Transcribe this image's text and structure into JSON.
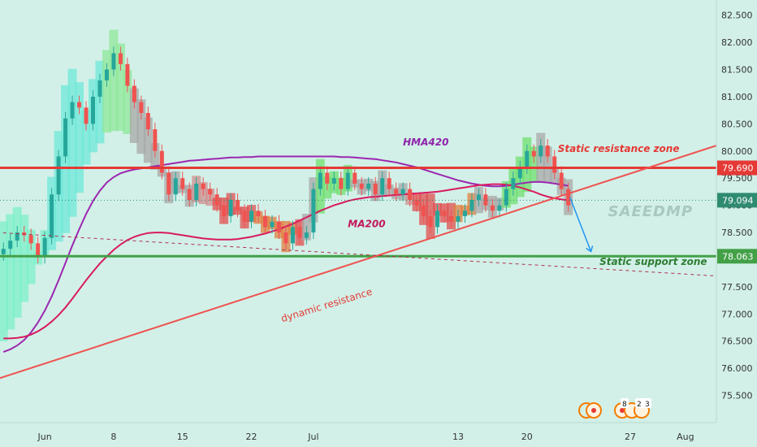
{
  "chart_data": {
    "type": "candlestick",
    "y_ticks": [
      82.5,
      82.0,
      81.5,
      81.0,
      80.5,
      80.0,
      79.5,
      79.0,
      78.5,
      78.0,
      77.5,
      77.0,
      76.5,
      76.0,
      75.5
    ],
    "y_tick_labels": [
      "82.500",
      "82.000",
      "81.500",
      "81.000",
      "80.500",
      "80.000",
      "79.500",
      "79.000",
      "78.500",
      "78.000",
      "77.500",
      "77.000",
      "76.500",
      "76.000",
      "75.500"
    ],
    "ylim": [
      75.0,
      82.78
    ],
    "x_ticks": [
      {
        "label": "Jun",
        "index": 6
      },
      {
        "label": "8",
        "index": 16
      },
      {
        "label": "15",
        "index": 26
      },
      {
        "label": "22",
        "index": 36
      },
      {
        "label": "Jul",
        "index": 45
      },
      {
        "label": "13",
        "index": 66
      },
      {
        "label": "20",
        "index": 76
      },
      {
        "label": "27",
        "index": 91
      },
      {
        "label": "Aug",
        "index": 99
      }
    ],
    "price_labels": [
      {
        "value": 79.69,
        "text": "79.690",
        "color": "#e53935"
      },
      {
        "value": 79.094,
        "text": "79.094",
        "color": "#2e8b70"
      },
      {
        "value": 78.063,
        "text": "78.063",
        "color": "#43a047"
      }
    ],
    "horizontal_lines": [
      {
        "value": 79.69,
        "color": "#e53935"
      },
      {
        "value": 78.063,
        "color": "#43a047"
      }
    ],
    "annotations": {
      "resistance": "Static resistance zone",
      "support": "Static support zone",
      "dynamic": "dynamic resistance",
      "hma": "HMA420",
      "ma": "MA200",
      "watermark": "SAEEDMP"
    },
    "series_close": [
      78.2,
      78.35,
      78.5,
      78.45,
      78.3,
      78.05,
      78.4,
      79.2,
      79.9,
      80.6,
      80.9,
      80.8,
      80.5,
      81.0,
      81.3,
      81.5,
      81.8,
      81.6,
      81.2,
      80.9,
      80.7,
      80.4,
      80.0,
      79.6,
      79.2,
      79.5,
      79.3,
      79.1,
      79.4,
      79.3,
      79.2,
      79.0,
      78.8,
      79.1,
      78.9,
      78.7,
      78.9,
      78.8,
      78.6,
      78.7,
      78.5,
      78.3,
      78.6,
      78.4,
      78.5,
      79.3,
      79.6,
      79.4,
      79.5,
      79.3,
      79.6,
      79.4,
      79.3,
      79.4,
      79.2,
      79.5,
      79.3,
      79.2,
      79.3,
      79.1,
      79.0,
      78.8,
      78.6,
      78.9,
      78.8,
      78.7,
      78.8,
      78.9,
      79.1,
      79.2,
      79.0,
      78.9,
      79.0,
      79.3,
      79.5,
      79.7,
      80.0,
      79.9,
      80.1,
      79.9,
      79.6,
      79.3,
      79.0
    ],
    "series_open": [
      78.1,
      78.2,
      78.35,
      78.5,
      78.45,
      78.3,
      78.05,
      78.4,
      79.2,
      79.9,
      80.6,
      80.9,
      80.8,
      80.5,
      81.0,
      81.3,
      81.5,
      81.8,
      81.6,
      81.2,
      80.9,
      80.7,
      80.4,
      80.0,
      79.6,
      79.2,
      79.5,
      79.3,
      79.1,
      79.4,
      79.3,
      79.2,
      79.0,
      78.8,
      79.1,
      78.9,
      78.7,
      78.9,
      78.8,
      78.6,
      78.7,
      78.5,
      78.3,
      78.6,
      78.4,
      78.5,
      79.3,
      79.6,
      79.4,
      79.5,
      79.3,
      79.6,
      79.4,
      79.3,
      79.4,
      79.2,
      79.5,
      79.3,
      79.2,
      79.3,
      79.1,
      79.0,
      78.8,
      78.6,
      78.9,
      78.8,
      78.7,
      78.8,
      78.9,
      79.1,
      79.2,
      79.0,
      78.9,
      79.0,
      79.3,
      79.5,
      79.7,
      80.0,
      79.9,
      80.1,
      79.9,
      79.6,
      79.3
    ],
    "ma200": [
      76.55,
      76.55,
      76.56,
      76.58,
      76.62,
      76.68,
      76.76,
      76.86,
      76.98,
      77.12,
      77.28,
      77.45,
      77.62,
      77.78,
      77.93,
      78.06,
      78.18,
      78.28,
      78.36,
      78.42,
      78.46,
      78.49,
      78.5,
      78.5,
      78.49,
      78.47,
      78.45,
      78.43,
      78.41,
      78.39,
      78.38,
      78.37,
      78.37,
      78.37,
      78.38,
      78.4,
      78.42,
      78.45,
      78.48,
      78.52,
      78.56,
      78.61,
      78.66,
      78.72,
      78.78,
      78.84,
      78.9,
      78.95,
      79.0,
      79.04,
      79.08,
      79.11,
      79.13,
      79.15,
      79.16,
      79.17,
      79.18,
      79.19,
      79.2,
      79.21,
      79.22,
      79.23,
      79.24,
      79.25,
      79.27,
      79.29,
      79.31,
      79.33,
      79.35,
      79.37,
      79.38,
      79.39,
      79.39,
      79.38,
      79.36,
      79.33,
      79.29,
      79.25,
      79.2,
      79.16,
      79.13,
      79.11,
      79.09
    ],
    "hma420": [
      76.3,
      76.35,
      76.42,
      76.52,
      76.66,
      76.84,
      77.06,
      77.32,
      77.62,
      77.94,
      78.26,
      78.56,
      78.84,
      79.08,
      79.27,
      79.42,
      79.52,
      79.59,
      79.63,
      79.66,
      79.68,
      79.7,
      79.72,
      79.74,
      79.76,
      79.78,
      79.8,
      79.82,
      79.83,
      79.84,
      79.85,
      79.86,
      79.87,
      79.88,
      79.88,
      79.89,
      79.89,
      79.9,
      79.9,
      79.9,
      79.9,
      79.9,
      79.9,
      79.9,
      79.9,
      79.9,
      79.9,
      79.9,
      79.9,
      79.89,
      79.89,
      79.88,
      79.87,
      79.86,
      79.85,
      79.83,
      79.81,
      79.79,
      79.76,
      79.73,
      79.7,
      79.66,
      79.62,
      79.58,
      79.54,
      79.5,
      79.46,
      79.43,
      79.4,
      79.38,
      79.36,
      79.35,
      79.35,
      79.36,
      79.38,
      79.4,
      79.42,
      79.43,
      79.43,
      79.42,
      79.4,
      79.38,
      79.36
    ],
    "ribbon_center": [
      77.0,
      77.2,
      77.4,
      77.6,
      77.8,
      78.0,
      78.2,
      78.5,
      78.8,
      79.1,
      79.4,
      79.7,
      80.0,
      80.3,
      80.5,
      80.7,
      80.8,
      80.75,
      80.6,
      80.4,
      80.2,
      80.0,
      79.8,
      79.6,
      79.45,
      79.35,
      79.3,
      79.25,
      79.2,
      79.15,
      79.1,
      79.05,
      79.0,
      78.95,
      78.9,
      78.85,
      78.8,
      78.75,
      78.7,
      78.65,
      78.6,
      78.55,
      78.55,
      78.6,
      78.7,
      78.9,
      79.1,
      79.25,
      79.35,
      79.4,
      79.4,
      79.4,
      79.38,
      79.35,
      79.33,
      79.3,
      79.27,
      79.24,
      79.2,
      79.15,
      79.1,
      79.05,
      79.0,
      78.95,
      78.92,
      78.9,
      78.9,
      78.92,
      78.95,
      79.0,
      79.05,
      79.05,
      79.05,
      79.1,
      79.2,
      79.35,
      79.5,
      79.6,
      79.65,
      79.6,
      79.5,
      79.4,
      79.3
    ],
    "ribbon_colors": [
      "#7cf0c8",
      "#7cf0c8",
      "#7cf0c8",
      "#7cf0c8",
      "#7cf0c8",
      "#7cf0c8",
      "#7cf0c8",
      "#6fe8d8",
      "#6fe8d8",
      "#6fe8d8",
      "#6fe8d8",
      "#6fe8d8",
      "#6fe8d8",
      "#6fe8d8",
      "#6fe8d8",
      "#8fe89a",
      "#8fe89a",
      "#8fe89a",
      "#8fe89a",
      "#a8a8a8",
      "#a8a8a8",
      "#a8a8a8",
      "#a8a8a8",
      "#a8a8a8",
      "#a8a8a8",
      "#a8a8a8",
      "#a8a8a8",
      "#a8a8a8",
      "#d09090",
      "#d09090",
      "#d09090",
      "#e05050",
      "#e05050",
      "#e05050",
      "#e05050",
      "#e05050",
      "#e05050",
      "#e08040",
      "#e08040",
      "#e08040",
      "#e08040",
      "#e08040",
      "#e08040",
      "#e05050",
      "#a8a8a8",
      "#a8a8a8",
      "#70e070",
      "#70e070",
      "#70e070",
      "#70e070",
      "#70e070",
      "#a8a8a8",
      "#a8a8a8",
      "#a8a8a8",
      "#a8a8a8",
      "#a8a8a8",
      "#a8a8a8",
      "#a8a8a8",
      "#a8a8a8",
      "#d09090",
      "#e05050",
      "#e05050",
      "#e05050",
      "#e05050",
      "#e05050",
      "#e05050",
      "#e08040",
      "#e08040",
      "#e08040",
      "#a8a8a8",
      "#a8a8a8",
      "#a8a8a8",
      "#a8a8a8",
      "#70e070",
      "#70e070",
      "#70e070",
      "#70e070",
      "#70e070",
      "#a8a8a8",
      "#a8a8a8",
      "#a8a8a8",
      "#a8a8a8",
      "#a8a8a8"
    ],
    "colors": {
      "background": "#d2f0e8",
      "axis_bg": "#d2f0e8",
      "up_candle": "#26a69a",
      "down_candle": "#ef5350",
      "hma": "#9c27b0",
      "ma": "#d81b60",
      "trend": "#ef5350",
      "dashed_trend": "#b03050",
      "arrow": "#2196f3"
    }
  }
}
